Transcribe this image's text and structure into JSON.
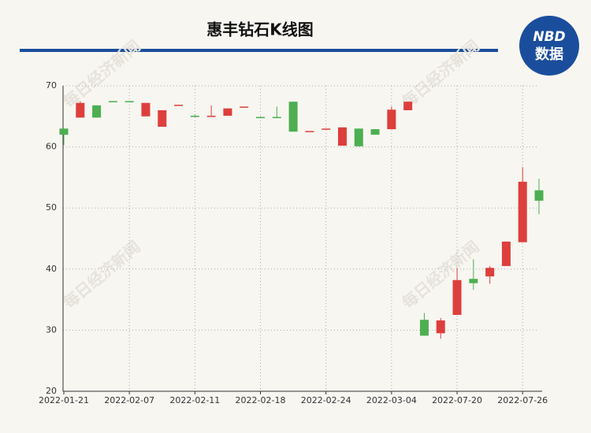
{
  "chart_data": {
    "type": "candlestick",
    "title": "惠丰钻石K线图",
    "logo": {
      "brand": "NBD",
      "label": "数据"
    },
    "watermark": "每日经济新闻",
    "categories": [
      "2022-01-21",
      null,
      null,
      null,
      "2022-02-07",
      null,
      null,
      null,
      "2022-02-11",
      null,
      null,
      null,
      "2022-02-18",
      null,
      null,
      null,
      "2022-02-24",
      null,
      null,
      null,
      "2022-03-04",
      null,
      null,
      null,
      "2022-07-20",
      null,
      null,
      null,
      "2022-07-26",
      null
    ],
    "open": [
      63.0,
      64.8,
      66.8,
      67.5,
      67.5,
      65.0,
      63.3,
      66.8,
      65.1,
      65.0,
      65.1,
      66.5,
      64.9,
      64.9,
      67.4,
      62.5,
      62.9,
      60.2,
      63.0,
      62.9,
      62.9,
      66.0,
      31.7,
      29.5,
      32.5,
      38.4,
      38.8,
      40.5,
      44.4,
      52.9
    ],
    "close": [
      62.0,
      67.2,
      64.8,
      67.4,
      67.4,
      67.2,
      66.0,
      66.9,
      64.9,
      65.1,
      66.3,
      66.6,
      64.8,
      64.8,
      62.5,
      62.6,
      63.0,
      63.2,
      60.1,
      62.0,
      66.1,
      67.4,
      29.1,
      31.6,
      38.2,
      37.7,
      40.2,
      44.5,
      54.3,
      51.2
    ],
    "low": [
      60.3,
      64.8,
      64.8,
      67.4,
      67.4,
      65.0,
      63.3,
      66.8,
      64.9,
      65.0,
      65.1,
      66.5,
      64.8,
      64.8,
      62.5,
      62.5,
      62.9,
      60.2,
      60.1,
      62.0,
      62.9,
      66.0,
      29.1,
      28.6,
      32.5,
      36.6,
      37.6,
      40.5,
      44.4,
      49.0
    ],
    "high": [
      63.0,
      67.5,
      66.8,
      67.5,
      67.5,
      67.2,
      66.0,
      66.9,
      65.3,
      66.8,
      66.3,
      66.6,
      65.0,
      66.6,
      67.4,
      62.6,
      63.0,
      63.2,
      63.0,
      62.9,
      66.6,
      67.4,
      32.8,
      32.0,
      40.2,
      41.6,
      40.5,
      44.5,
      56.7,
      54.8
    ],
    "up_color": "#dd3f3c",
    "down_color": "#4caf50",
    "ylim": [
      20,
      70
    ],
    "yticks": [
      20,
      30,
      40,
      50,
      60,
      70
    ],
    "grid": true
  }
}
